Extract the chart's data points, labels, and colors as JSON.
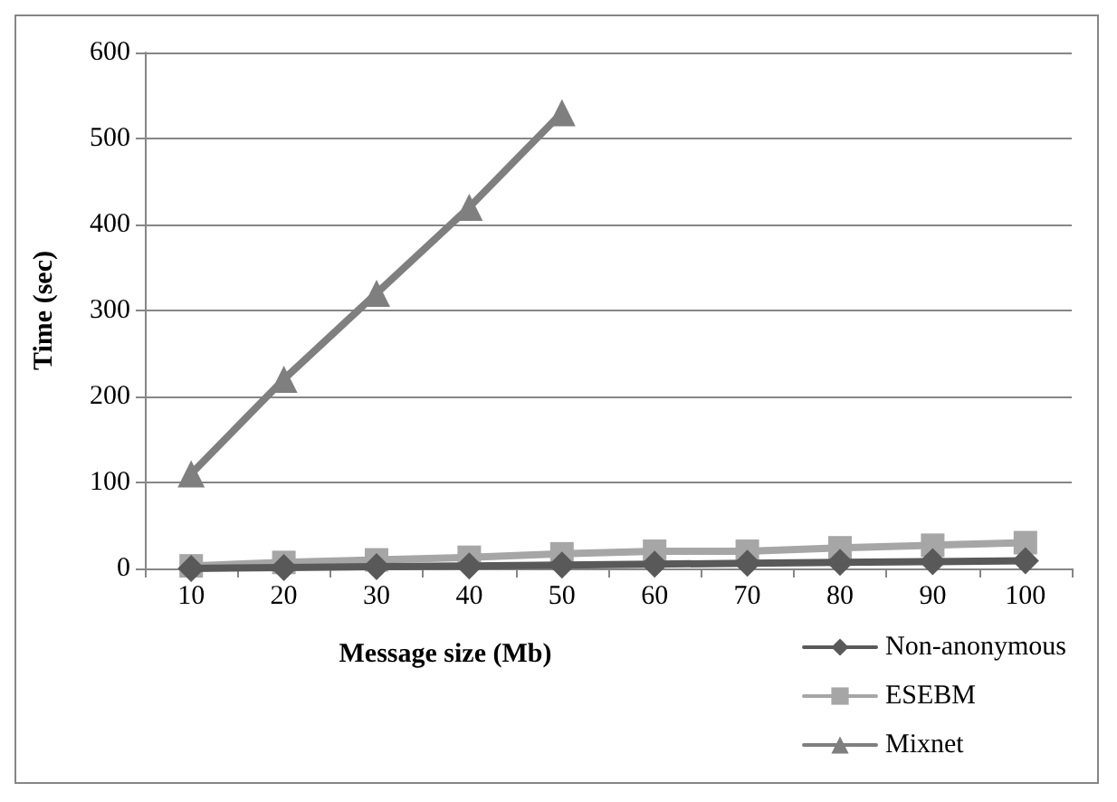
{
  "chart_data": {
    "type": "line",
    "xlabel": "Message size (Mb)",
    "ylabel": "Time (sec)",
    "categories": [
      "10",
      "20",
      "30",
      "40",
      "50",
      "60",
      "70",
      "80",
      "90",
      "100"
    ],
    "series": [
      {
        "name": "Non-anonymous",
        "color": "#595959",
        "marker": "diamond",
        "values": [
          0,
          1,
          2,
          3,
          4,
          5,
          6,
          7,
          8,
          9
        ]
      },
      {
        "name": "ESEBM",
        "color": "#a6a6a6",
        "marker": "square",
        "values": [
          3,
          7,
          10,
          13,
          17,
          20,
          20,
          24,
          27,
          30
        ]
      },
      {
        "name": "Mixnet",
        "color": "#7f7f7f",
        "marker": "triangle",
        "values": [
          110,
          220,
          320,
          420,
          530,
          null,
          null,
          null,
          null,
          null
        ]
      }
    ],
    "ylim": [
      0,
      600
    ],
    "yticks": [
      0,
      100,
      200,
      300,
      400,
      500,
      600
    ],
    "grid": "y",
    "legend": "bottom right",
    "line_style": "solid"
  }
}
